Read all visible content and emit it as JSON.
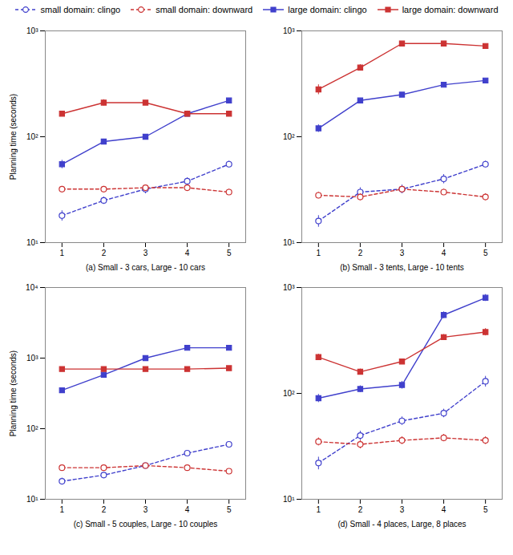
{
  "chart_data": [
    {
      "type": "line",
      "xlabel": "(a) Small - 3 cars, Large - 10 cars",
      "ylabel": "Planning time (seconds)",
      "log": "y",
      "grid": false,
      "legend": "top",
      "x": [
        1,
        2,
        3,
        4,
        5
      ],
      "xlim": [
        0.6,
        5.4
      ],
      "xticks": [
        1,
        2,
        3,
        4,
        5
      ],
      "ylim": [
        10,
        1000
      ],
      "yticks": [
        {
          "value": 10,
          "label": "10¹"
        },
        {
          "value": 100,
          "label": "10²"
        },
        {
          "value": 1000,
          "label": "10³"
        }
      ],
      "series": [
        {
          "name": "small domain: clingo",
          "color": "#4040cc",
          "line_style": "dashed",
          "marker": "circle",
          "values": [
            18,
            25,
            32,
            38,
            55
          ],
          "yerr": [
            2,
            2,
            3,
            3,
            4
          ]
        },
        {
          "name": "small domain: downward",
          "color": "#cc3333",
          "line_style": "dashed",
          "marker": "circle",
          "values": [
            32,
            32,
            33,
            33,
            30
          ],
          "yerr": [
            2,
            2,
            2,
            2,
            2
          ]
        },
        {
          "name": "large domain: clingo",
          "color": "#4040cc",
          "line_style": "solid",
          "marker": "square",
          "values": [
            55,
            90,
            100,
            165,
            220
          ],
          "yerr": [
            5,
            5,
            4,
            8,
            10
          ]
        },
        {
          "name": "large domain: downward",
          "color": "#cc3333",
          "line_style": "solid",
          "marker": "square",
          "values": [
            165,
            210,
            210,
            165,
            165
          ],
          "yerr": [
            8,
            14,
            8,
            10,
            8
          ]
        }
      ]
    },
    {
      "type": "line",
      "xlabel": "(b) Small - 3 tents, Large - 10 tents",
      "log": "y",
      "grid": false,
      "x": [
        1,
        2,
        3,
        4,
        5
      ],
      "xlim": [
        0.6,
        5.4
      ],
      "xticks": [
        1,
        2,
        3,
        4,
        5
      ],
      "ylim": [
        10,
        1000
      ],
      "yticks": [
        {
          "value": 10,
          "label": "10¹"
        },
        {
          "value": 100,
          "label": "10²"
        },
        {
          "value": 1000,
          "label": "10³"
        }
      ],
      "series": [
        {
          "name": "small domain: clingo",
          "color": "#4040cc",
          "line_style": "dashed",
          "marker": "circle",
          "values": [
            16,
            30,
            32,
            40,
            55
          ],
          "yerr": [
            2,
            3,
            3,
            4,
            4
          ]
        },
        {
          "name": "small domain: downward",
          "color": "#cc3333",
          "line_style": "dashed",
          "marker": "circle",
          "values": [
            28,
            27,
            32,
            30,
            27
          ],
          "yerr": [
            2,
            2,
            2,
            2,
            2
          ]
        },
        {
          "name": "large domain: clingo",
          "color": "#4040cc",
          "line_style": "solid",
          "marker": "square",
          "values": [
            120,
            220,
            250,
            310,
            340
          ],
          "yerr": [
            10,
            8,
            6,
            8,
            10
          ]
        },
        {
          "name": "large domain: downward",
          "color": "#cc3333",
          "line_style": "solid",
          "marker": "square",
          "values": [
            280,
            450,
            760,
            760,
            720
          ],
          "yerr": [
            30,
            30,
            20,
            12,
            12
          ]
        }
      ]
    },
    {
      "type": "line",
      "xlabel": "(c) Small - 5 couples, Large - 10 couples",
      "ylabel": "Planning time (seconds)",
      "log": "y",
      "grid": false,
      "x": [
        1,
        2,
        3,
        4,
        5
      ],
      "xlim": [
        0.6,
        5.4
      ],
      "xticks": [
        1,
        2,
        3,
        4,
        5
      ],
      "ylim": [
        10,
        10000
      ],
      "yticks": [
        {
          "value": 10,
          "label": "10¹"
        },
        {
          "value": 100,
          "label": "10²"
        },
        {
          "value": 1000,
          "label": "10³"
        },
        {
          "value": 10000,
          "label": "10⁴"
        }
      ],
      "series": [
        {
          "name": "small domain: clingo",
          "color": "#4040cc",
          "line_style": "dashed",
          "marker": "circle",
          "values": [
            18,
            22,
            30,
            45,
            60
          ],
          "yerr": [
            2,
            2,
            2,
            3,
            4
          ]
        },
        {
          "name": "small domain: downward",
          "color": "#cc3333",
          "line_style": "dashed",
          "marker": "circle",
          "values": [
            28,
            28,
            30,
            28,
            25
          ],
          "yerr": [
            2,
            2,
            2,
            2,
            2
          ]
        },
        {
          "name": "large domain: clingo",
          "color": "#4040cc",
          "line_style": "solid",
          "marker": "square",
          "values": [
            350,
            580,
            1000,
            1400,
            1400
          ],
          "yerr": [
            25,
            40,
            60,
            80,
            60
          ]
        },
        {
          "name": "large domain: downward",
          "color": "#cc3333",
          "line_style": "solid",
          "marker": "square",
          "values": [
            700,
            700,
            700,
            700,
            720
          ],
          "yerr": [
            35,
            35,
            30,
            30,
            30
          ]
        }
      ]
    },
    {
      "type": "line",
      "xlabel": "(d) Small - 4 places, Large, 8 places",
      "log": "y",
      "grid": false,
      "x": [
        1,
        2,
        3,
        4,
        5
      ],
      "xlim": [
        0.6,
        5.4
      ],
      "xticks": [
        1,
        2,
        3,
        4,
        5
      ],
      "ylim": [
        10,
        1000
      ],
      "yticks": [
        {
          "value": 10,
          "label": "10¹"
        },
        {
          "value": 100,
          "label": "10²"
        },
        {
          "value": 1000,
          "label": "10³"
        }
      ],
      "series": [
        {
          "name": "small domain: clingo",
          "color": "#4040cc",
          "line_style": "dashed",
          "marker": "circle",
          "values": [
            22,
            40,
            55,
            65,
            130
          ],
          "yerr": [
            3,
            4,
            5,
            6,
            15
          ]
        },
        {
          "name": "small domain: downward",
          "color": "#cc3333",
          "line_style": "dashed",
          "marker": "circle",
          "values": [
            35,
            33,
            36,
            38,
            36
          ],
          "yerr": [
            3,
            3,
            3,
            3,
            3
          ]
        },
        {
          "name": "large domain: clingo",
          "color": "#4040cc",
          "line_style": "solid",
          "marker": "square",
          "values": [
            90,
            110,
            120,
            550,
            800
          ],
          "yerr": [
            8,
            8,
            10,
            40,
            60
          ]
        },
        {
          "name": "large domain: downward",
          "color": "#cc3333",
          "line_style": "solid",
          "marker": "square",
          "values": [
            220,
            160,
            200,
            340,
            380
          ],
          "yerr": [
            15,
            10,
            10,
            20,
            30
          ]
        }
      ]
    }
  ]
}
